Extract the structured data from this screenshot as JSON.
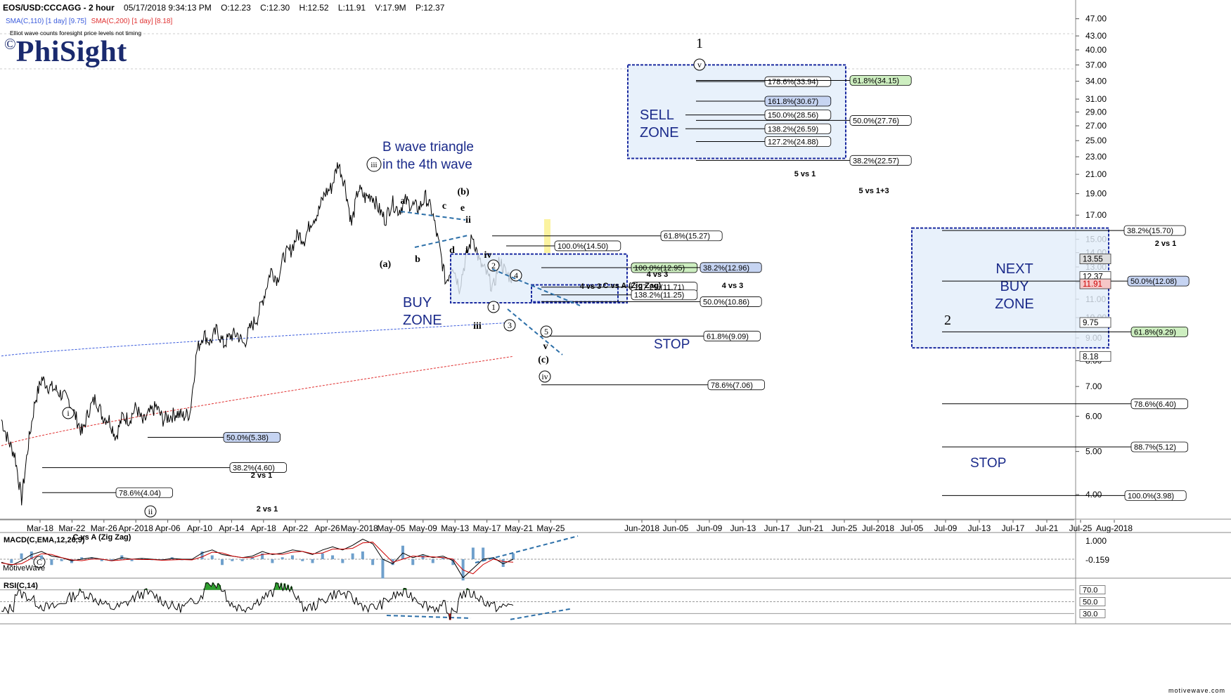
{
  "header": {
    "symbol": "EOS/USD:CCCAGG - 2 hour",
    "datetime": "05/17/2018 9:34:13 PM",
    "open": "O:12.23",
    "close": "C:12.30",
    "high": "H:12.52",
    "low": "L:11.91",
    "volume": "V:17.9M",
    "price": "P:12.37",
    "sma110": "SMA(C,110) [1 day] [9.75]",
    "sma200": "SMA(C,200) [1 day] [8.18]",
    "note": "Elliot wave counts foresight price levels not timing"
  },
  "logo": {
    "copyright": "©",
    "name": "PhiSight"
  },
  "watermark_left": "MotiveWave",
  "watermark_right": "motivewave.com",
  "colors": {
    "sma110": "#3a5bdc",
    "sma200": "#e03030",
    "zone_border": "#1a2aa0",
    "zone_fill": "#e2eefa",
    "zone_text": "#1a2a8a",
    "green_box": "#cdeec0",
    "blue_box": "#c6d4f2",
    "trend_dash": "#2c6fa8",
    "rsi_green": "#2ea02e",
    "rsi_red": "#e02020",
    "macd_hist": "#6fa0cc"
  },
  "chart_data": [
    {
      "type": "line",
      "name": "price",
      "ylabel": "",
      "y_scale": "log",
      "ylim": [
        3.5,
        52
      ],
      "y_ticks": [
        "4.00",
        "5.00",
        "6.00",
        "7.00",
        "8.00",
        "9.00",
        "10.00",
        "11.00",
        "12.00",
        "13.00",
        "14.00",
        "15.00",
        "17.00",
        "19.00",
        "21.00",
        "23.00",
        "25.00",
        "27.00",
        "29.00",
        "31.00",
        "34.00",
        "37.00",
        "40.00",
        "43.00",
        "47.00"
      ],
      "x_ticks": [
        "Mar-18",
        "Mar-22",
        "Mar-26",
        "Apr-2018",
        "Apr-06",
        "Apr-10",
        "Apr-14",
        "Apr-18",
        "Apr-22",
        "Apr-26",
        "May-2018",
        "May-05",
        "May-09",
        "May-13",
        "May-17",
        "May-21",
        "May-25",
        "Jun-2018",
        "Jun-05",
        "Jun-09",
        "Jun-13",
        "Jun-17",
        "Jun-21",
        "Jun-25",
        "Jul-2018",
        "Jul-05",
        "Jul-09",
        "Jul-13",
        "Jul-17",
        "Jul-21",
        "Jul-25",
        "Aug-2018"
      ],
      "price_path": [
        [
          0,
          5.9
        ],
        [
          1,
          5.3
        ],
        [
          2,
          4.9
        ],
        [
          3,
          3.9
        ],
        [
          4,
          5.2
        ],
        [
          5,
          6.5
        ],
        [
          6,
          7.3
        ],
        [
          7,
          7.0
        ],
        [
          8,
          6.9
        ],
        [
          9,
          6.7
        ],
        [
          10,
          6.5
        ],
        [
          11,
          6.0
        ],
        [
          12,
          5.5
        ],
        [
          13,
          6.2
        ],
        [
          14,
          6.6
        ],
        [
          15,
          6.0
        ],
        [
          16,
          5.9
        ],
        [
          17,
          5.4
        ],
        [
          18,
          6.0
        ],
        [
          19,
          5.9
        ],
        [
          20,
          6.3
        ],
        [
          21,
          5.8
        ],
        [
          22,
          6.1
        ],
        [
          23,
          6.3
        ],
        [
          24,
          5.9
        ],
        [
          25,
          6.0
        ],
        [
          26,
          6.1
        ],
        [
          27,
          6.0
        ],
        [
          28,
          6.1
        ],
        [
          29,
          8.4
        ],
        [
          30,
          9.2
        ],
        [
          31,
          8.8
        ],
        [
          32,
          9.4
        ],
        [
          33,
          8.7
        ],
        [
          34,
          9.1
        ],
        [
          35,
          9.2
        ],
        [
          36,
          8.7
        ],
        [
          37,
          9.5
        ],
        [
          38,
          10.0
        ],
        [
          39,
          11.2
        ],
        [
          40,
          12.8
        ],
        [
          41,
          12.2
        ],
        [
          42,
          13.8
        ],
        [
          43,
          14.2
        ],
        [
          44,
          15.4
        ],
        [
          45,
          15.0
        ],
        [
          46,
          16.5
        ],
        [
          47,
          17.2
        ],
        [
          48,
          19.0
        ],
        [
          49,
          19.6
        ],
        [
          50,
          22.3
        ],
        [
          51,
          20.0
        ],
        [
          52,
          16.2
        ],
        [
          53,
          19.5
        ],
        [
          54,
          18.6
        ],
        [
          55,
          18.9
        ],
        [
          56,
          17.6
        ],
        [
          57,
          16.6
        ],
        [
          58,
          18.2
        ],
        [
          59,
          17.4
        ],
        [
          60,
          18.3
        ],
        [
          61,
          17.9
        ],
        [
          62,
          17.6
        ],
        [
          63,
          18.7
        ],
        [
          64,
          17.2
        ],
        [
          65,
          14.5
        ],
        [
          66,
          12.0
        ],
        [
          67,
          13.2
        ],
        [
          68,
          11.7
        ],
        [
          69,
          13.7
        ],
        [
          70,
          15.3
        ],
        [
          71,
          13.3
        ],
        [
          72,
          12.6
        ],
        [
          73,
          11.6
        ],
        [
          74,
          13.5
        ],
        [
          75,
          12.5
        ],
        [
          76,
          12.3
        ]
      ],
      "price_path_units": "[bar index 0-76 spanning Mar-16 to May-17, price USD]",
      "sma110": {
        "label": "SMA(C,110) [1 day]",
        "last": 9.75,
        "start": 8.2,
        "end": 9.75
      },
      "sma200": {
        "label": "SMA(C,200) [1 day]",
        "last": 8.18,
        "start": 5.15,
        "end": 8.18
      },
      "right_axis_markers": [
        {
          "value": "13.55",
          "style": "gray"
        },
        {
          "value": "12.37",
          "style": "white"
        },
        {
          "value": "11.91",
          "style": "red"
        },
        {
          "value": "9.75",
          "style": "white"
        },
        {
          "value": "8.18",
          "style": "white"
        }
      ],
      "wave_labels": [
        {
          "text": "1",
          "price": 47.5
        },
        {
          "text": "v",
          "circled": true,
          "price": 40.5
        },
        {
          "text": "iii",
          "circled": true,
          "price": 24.0
        },
        {
          "text": "i",
          "circled": true,
          "price": 7.7
        },
        {
          "text": "ii",
          "circled": true,
          "price": 5.1
        },
        {
          "text": "C",
          "circled": true,
          "price": 3.7
        },
        {
          "text": "(a)",
          "price": 15.5
        },
        {
          "text": "(b)",
          "price": 20.5
        },
        {
          "text": "(c)",
          "price": 9.6
        },
        {
          "text": "iv",
          "circled": true,
          "price": 9.0
        },
        {
          "text": "a",
          "price": 20.0
        },
        {
          "text": "b",
          "price": 15.9
        },
        {
          "text": "c",
          "price": 19.5
        },
        {
          "text": "d",
          "price": 16.8
        },
        {
          "text": "e",
          "price": 19.2
        },
        {
          "text": "ii",
          "price": 18.5
        },
        {
          "text": "i",
          "price": 16.8
        },
        {
          "text": "iv",
          "price": 15.6
        },
        {
          "text": "iii",
          "price": 11.4
        },
        {
          "text": "v",
          "price": 10.5
        },
        {
          "text": "1",
          "circled": true,
          "price": 12.3
        },
        {
          "text": "2",
          "circled": true,
          "price": 15.0
        },
        {
          "text": "3",
          "circled": true,
          "price": 11.6
        },
        {
          "text": "4",
          "circled": true,
          "price": 14.3
        },
        {
          "text": "5",
          "circled": true,
          "price": 11.05
        },
        {
          "text": "2",
          "price": 11.6
        }
      ],
      "annotations": [
        {
          "text": "B wave triangle",
          "color": "navy"
        },
        {
          "text": "in the 4th wave",
          "color": "navy"
        }
      ],
      "zones": [
        {
          "name": "SELL ZONE",
          "lines": [
            "SELL",
            "ZONE"
          ],
          "low": 22.8,
          "high": 37.0
        },
        {
          "name": "BUY ZONE",
          "lines": [
            "BUY",
            "ZONE"
          ],
          "low": 10.8,
          "high": 13.9
        },
        {
          "name": "NEXT BUY ZONE",
          "lines": [
            "NEXT",
            "BUY",
            "ZONE"
          ],
          "low": 8.55,
          "high": 15.9
        },
        {
          "name": "inner box",
          "lines": [],
          "low": 10.85,
          "high": 11.85
        }
      ],
      "stop_labels": [
        "STOP",
        "STOP"
      ],
      "fib_levels": [
        {
          "label": "178.6%(33.94)",
          "value": 33.94,
          "box": "white",
          "group": "sell"
        },
        {
          "label": "161.8%(30.67)",
          "value": 30.67,
          "box": "blue",
          "group": "sell"
        },
        {
          "label": "150.0%(28.56)",
          "value": 28.56,
          "box": "white",
          "group": "sell"
        },
        {
          "label": "138.2%(26.59)",
          "value": 26.59,
          "box": "white",
          "group": "sell"
        },
        {
          "label": "127.2%(24.88)",
          "value": 24.88,
          "box": "white",
          "group": "sell"
        },
        {
          "label": "61.8%(34.15)",
          "value": 34.15,
          "box": "green",
          "group": "sell-right"
        },
        {
          "label": "50.0%(27.76)",
          "value": 27.76,
          "box": "white",
          "group": "sell-right"
        },
        {
          "label": "38.2%(22.57)",
          "value": 22.57,
          "box": "white",
          "group": "sell-right"
        },
        {
          "label": "61.8%(15.27)",
          "value": 15.27,
          "box": "white",
          "group": "mid"
        },
        {
          "label": "100.0%(14.50)",
          "value": 14.5,
          "box": "white",
          "group": "mid"
        },
        {
          "label": "100.0%(12.95)",
          "value": 12.95,
          "box": "green",
          "group": "mid"
        },
        {
          "label": "38.2%(12.96)",
          "value": 12.96,
          "box": "blue",
          "group": "mid"
        },
        {
          "label": "127.2%(11.71)",
          "value": 11.71,
          "box": "white",
          "group": "mid"
        },
        {
          "label": "138.2%(11.25)",
          "value": 11.25,
          "box": "white",
          "group": "mid"
        },
        {
          "label": "50.0%(10.86)",
          "value": 10.86,
          "box": "white",
          "group": "mid"
        },
        {
          "label": "61.8%(9.09)",
          "value": 9.09,
          "box": "white",
          "group": "mid"
        },
        {
          "label": "78.6%(7.06)",
          "value": 7.06,
          "box": "white",
          "group": "mid"
        },
        {
          "label": "38.2%(15.70)",
          "value": 15.7,
          "box": "white",
          "group": "right"
        },
        {
          "label": "50.0%(12.08)",
          "value": 12.08,
          "box": "blue",
          "group": "right"
        },
        {
          "label": "61.8%(9.29)",
          "value": 9.29,
          "box": "green",
          "group": "right"
        },
        {
          "label": "78.6%(6.40)",
          "value": 6.4,
          "box": "white",
          "group": "right"
        },
        {
          "label": "88.7%(5.12)",
          "value": 5.12,
          "box": "white",
          "group": "right"
        },
        {
          "label": "100.0%(3.98)",
          "value": 3.98,
          "box": "white",
          "group": "right"
        },
        {
          "label": "50.0%(5.38)",
          "value": 5.38,
          "box": "blue",
          "group": "left"
        },
        {
          "label": "38.2%(4.60)",
          "value": 4.6,
          "box": "white",
          "group": "left"
        },
        {
          "label": "78.6%(4.04)",
          "value": 4.04,
          "box": "white",
          "group": "left"
        }
      ],
      "fib_titles": [
        "5 vs 1",
        "5 vs 1+3",
        "4 vs 3",
        "4 vs 3",
        "C vs A (Zig Zag)",
        "4 vs 3",
        "2 vs 1",
        "2 vs 1",
        "2 vs 1",
        "C vs A (Zig Zag)"
      ]
    },
    {
      "type": "line",
      "name": "MACD(C,EMA,12,26,9)",
      "y_ticks": [
        "1.000",
        "-0.159"
      ],
      "series": [
        {
          "name": "MACD",
          "values": [
            -0.2,
            -0.4,
            -0.1,
            0.3,
            0.5,
            0.2,
            0.1,
            -0.1,
            0.0,
            0.1,
            0.0,
            -0.1,
            0.1,
            0.0,
            0.05,
            0.0,
            -0.05,
            0.05,
            0.0,
            0.0,
            0.4,
            0.6,
            0.3,
            0.2,
            0.1,
            0.2,
            0.5,
            0.3,
            0.4,
            0.6,
            0.5,
            0.3,
            0.6,
            0.8,
            0.6,
            0.9,
            1.3,
            1.0,
            0.0,
            -0.3,
            0.4,
            0.1,
            0.3,
            0.1,
            0.2,
            -0.1,
            -1.2,
            -0.6,
            0.0,
            0.1,
            -0.3,
            0.0
          ]
        }
      ]
    },
    {
      "type": "line",
      "name": "RSI(C,14)",
      "y_ticks": [
        "70.0",
        "50.0",
        "30.0"
      ],
      "ylim": [
        15,
        85
      ]
    }
  ]
}
